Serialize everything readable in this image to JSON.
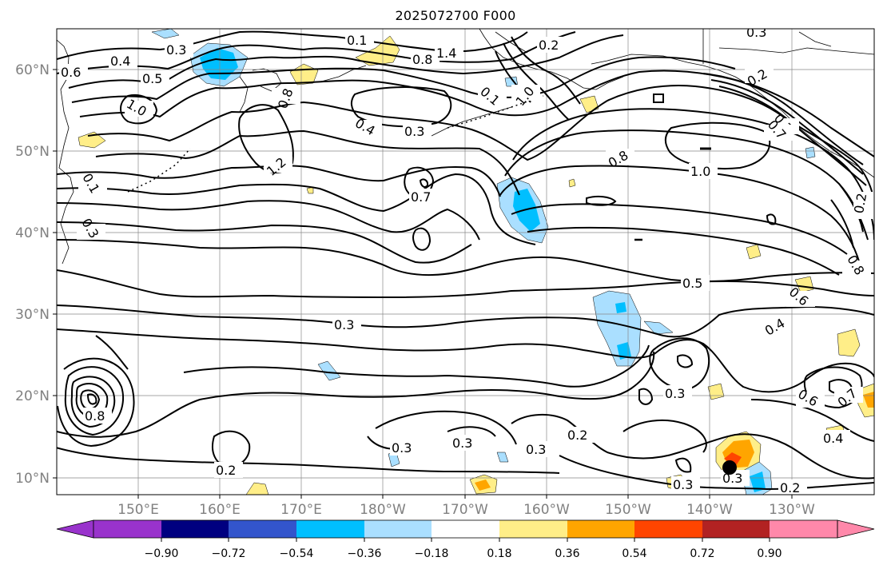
{
  "title": "2025072700 F000",
  "map": {
    "lat_labels": [
      "60°N",
      "50°N",
      "40°N",
      "30°N",
      "20°N",
      "10°N"
    ],
    "lon_labels": [
      "150°E",
      "160°E",
      "170°E",
      "180°W",
      "170°W",
      "160°W",
      "150°W",
      "140°W",
      "130°W"
    ],
    "contour_labels": [
      "0.3",
      "0.4",
      "0.6",
      "0.5",
      "0.8",
      "1.0",
      "1.2",
      "0.1",
      "0.4",
      "0.3",
      "0.8",
      "1.4",
      "0.2",
      "0.1",
      "1.0",
      "0.2",
      "0.3",
      "0.7",
      "0.8",
      "1.0",
      "0.2",
      "0.1",
      "0.3",
      "0.3",
      "0.7",
      "0.5",
      "0.6",
      "0.4",
      "0.8",
      "0.3",
      "0.2",
      "0.3",
      "0.3",
      "0.3",
      "0.2",
      "0.3",
      "0.2",
      "0.3",
      "0.3",
      "0.6",
      "0.4",
      "0.7",
      "0.8"
    ],
    "point_marker": "black-dot-marker"
  },
  "colorbar": {
    "tick_labels": [
      "−0.90",
      "−0.72",
      "−0.54",
      "−0.36",
      "−0.18",
      "0.18",
      "0.36",
      "0.54",
      "0.72",
      "0.90"
    ],
    "colors": [
      "#9933cc",
      "#000080",
      "#3355cc",
      "#00bfff",
      "#aadfff",
      "#ffffff",
      "#ffee88",
      "#ffa500",
      "#ff4500",
      "#b22222",
      "#ff88aa"
    ],
    "neg_extend_color": "#9933cc",
    "pos_extend_color": "#ff88aa"
  }
}
